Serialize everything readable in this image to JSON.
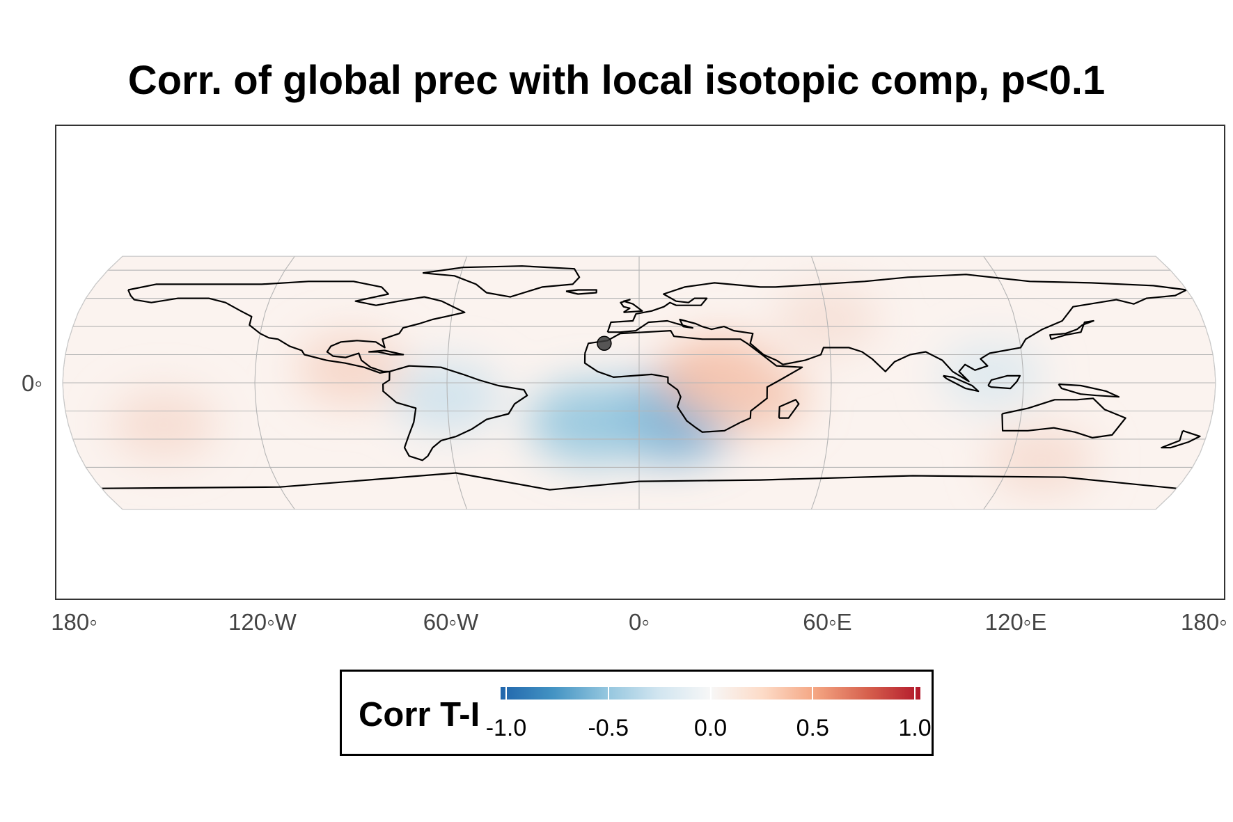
{
  "title": "Corr. of global prec with local isotopic comp, p<0.1",
  "x_axis": {
    "ticks": [
      {
        "lon": -180,
        "label": "180◦"
      },
      {
        "lon": -120,
        "label": "120◦W"
      },
      {
        "lon": -60,
        "label": "60◦W"
      },
      {
        "lon": 0,
        "label": "0◦"
      },
      {
        "lon": 60,
        "label": "60◦E"
      },
      {
        "lon": 120,
        "label": "120◦E"
      },
      {
        "lon": 180,
        "label": "180◦"
      }
    ]
  },
  "y_axis": {
    "ticks": [
      {
        "lat": 0,
        "label": "0◦"
      }
    ]
  },
  "marker": {
    "lon": -11,
    "lat": 28
  },
  "legend": {
    "title": "Corr T-I",
    "ticks": [
      {
        "value": -1.0,
        "label": "-1.0"
      },
      {
        "value": -0.5,
        "label": "-0.5"
      },
      {
        "value": 0.0,
        "label": "0.0"
      },
      {
        "value": 0.5,
        "label": "0.5"
      },
      {
        "value": 1.0,
        "label": "1.0"
      }
    ],
    "colors": [
      "#2166ac",
      "#f7f7f7",
      "#b2182b"
    ]
  },
  "chart_data": {
    "type": "heatmap",
    "projection": "Robinson",
    "value_range": [
      -1.0,
      1.0
    ],
    "regions": [
      {
        "lon": 10,
        "lat": -25,
        "value": -0.45
      },
      {
        "lon": -15,
        "lat": -28,
        "value": -0.35
      },
      {
        "lon": -60,
        "lat": -10,
        "value": -0.15
      },
      {
        "lon": 25,
        "lat": 5,
        "value": 0.25
      },
      {
        "lon": 35,
        "lat": -10,
        "value": 0.2
      },
      {
        "lon": -90,
        "lat": 10,
        "value": 0.15
      },
      {
        "lon": 60,
        "lat": 45,
        "value": 0.1
      },
      {
        "lon": -150,
        "lat": -30,
        "value": 0.12
      },
      {
        "lon": 130,
        "lat": -55,
        "value": 0.12
      },
      {
        "lon": 110,
        "lat": 5,
        "value": -0.1
      }
    ]
  }
}
